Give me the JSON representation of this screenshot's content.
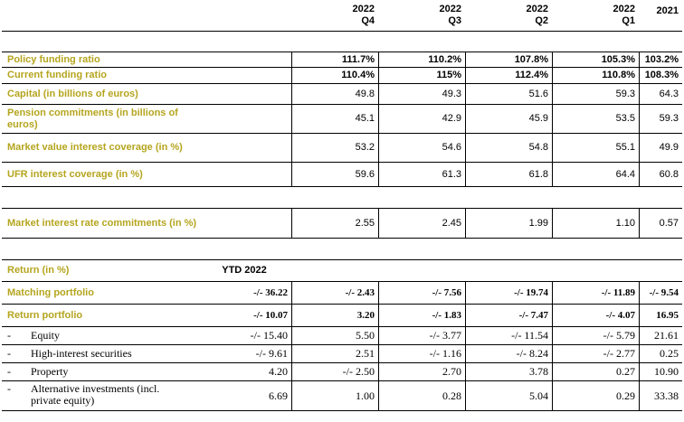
{
  "header": {
    "cols": [
      {
        "year": "",
        "q": ""
      },
      {
        "year": "2022",
        "q": "Q4"
      },
      {
        "year": "2022",
        "q": "Q3"
      },
      {
        "year": "2022",
        "q": "Q2"
      },
      {
        "year": "2022",
        "q": "Q1"
      },
      {
        "year": "2021",
        "q": ""
      }
    ]
  },
  "rows1": [
    {
      "label": "Policy funding ratio",
      "vals": [
        "111.7%",
        "110.2%",
        "107.8%",
        "105.3%",
        "103.2%"
      ]
    },
    {
      "label": "Current funding ratio",
      "vals": [
        "110.4%",
        "115%",
        "112.4%",
        "110.8%",
        "108.3%"
      ]
    },
    {
      "label": "Capital (in billions of euros)",
      "vals": [
        "49.8",
        "49.3",
        "51.6",
        "59.3",
        "64.3"
      ]
    },
    {
      "label": "Pension commitments (in billions of euros)",
      "vals": [
        "45.1",
        "42.9",
        "45.9",
        "53.5",
        "59.3"
      ]
    },
    {
      "label": "Market value interest coverage (in %)",
      "vals": [
        "53.2",
        "54.6",
        "54.8",
        "55.1",
        "49.9"
      ]
    },
    {
      "label": "UFR interest coverage (in %)",
      "vals": [
        "59.6",
        "61.3",
        "61.8",
        "64.4",
        "60.8"
      ]
    }
  ],
  "rows2": [
    {
      "label": "Market interest rate commitments (in %)",
      "vals": [
        "2.55",
        "2.45",
        "1.99",
        "1.10",
        "0.57"
      ]
    }
  ],
  "returns": {
    "title": "Return (in %)",
    "ytd_label": "YTD 2022",
    "matching": {
      "label": "Matching portfolio",
      "vals": [
        "-/- 36.22",
        "-/- 2.43",
        "-/- 7.56",
        "-/- 19.74",
        "-/- 11.89",
        "-/- 9.54"
      ]
    },
    "return_portfolio": {
      "label": "Return portfolio",
      "vals": [
        "-/- 10.07",
        "3.20",
        "-/- 1.83",
        "-/- 7.47",
        "-/- 4.07",
        "16.95"
      ]
    },
    "sub": [
      {
        "dash": "-",
        "label": "Equity",
        "vals": [
          "-/- 15.40",
          "5.50",
          "-/- 3.77",
          "-/- 11.54",
          "-/- 5.79",
          "21.61"
        ]
      },
      {
        "dash": "-",
        "label": "High-interest securities",
        "vals": [
          "-/- 9.61",
          "2.51",
          "-/- 1.16",
          "-/- 8.24",
          "-/- 2.77",
          "0.25"
        ]
      },
      {
        "dash": "-",
        "label": "Property",
        "vals": [
          "4.20",
          "-/- 2.50",
          "2.70",
          "3.78",
          "0.27",
          "10.90"
        ]
      },
      {
        "dash": "-",
        "label": "Alternative investments (incl. private equity)",
        "vals": [
          "6.69",
          "1.00",
          "0.28",
          "5.04",
          "0.29",
          "33.38"
        ]
      }
    ]
  },
  "colors": {
    "gold": "#b5a51e",
    "border": "#000000"
  }
}
